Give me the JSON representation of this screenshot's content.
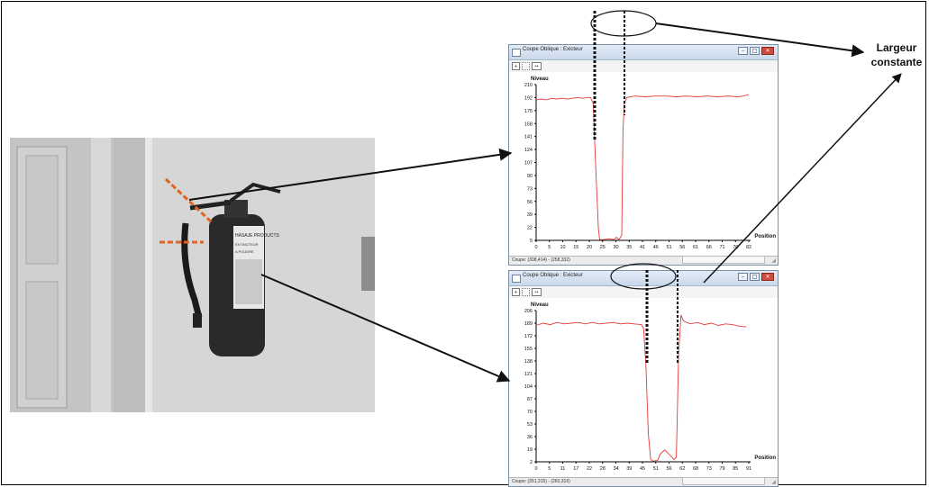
{
  "annotation": {
    "line1": "Largeur",
    "line2": "constante"
  },
  "colors": {
    "curve": "#e53b3b",
    "cut_marks": "#e0641e",
    "dashes": "#000000",
    "photo_wall": "#d2d2d2"
  },
  "photo_labels": [
    "HASAJE PRODUCTS",
    "EXTINCTEUR",
    "A POUDRE"
  ],
  "windows": [
    {
      "title": "Coupe Oblique : Exicteur",
      "status": "Coupe: (308,414) - (258,332)",
      "chart": {
        "ylabel": "Niveau",
        "xlabel": "Position",
        "yticks": [
          "210",
          "192",
          "175",
          "158",
          "141",
          "124",
          "107",
          "90",
          "73",
          "56",
          "39",
          "22",
          "5"
        ],
        "xticks": [
          "0",
          "5",
          "10",
          "15",
          "20",
          "25",
          "30",
          "35",
          "41",
          "46",
          "51",
          "56",
          "61",
          "66",
          "71",
          "76",
          "82"
        ]
      }
    },
    {
      "title": "Coupe Oblique : Exicteur",
      "status": "Coupe: (351,315) - (260,316)",
      "chart": {
        "ylabel": "Niveau",
        "xlabel": "Position",
        "yticks": [
          "206",
          "189",
          "172",
          "155",
          "138",
          "121",
          "104",
          "87",
          "70",
          "53",
          "36",
          "19",
          "2"
        ],
        "xticks": [
          "0",
          "5",
          "11",
          "17",
          "22",
          "28",
          "34",
          "39",
          "45",
          "51",
          "56",
          "62",
          "68",
          "73",
          "79",
          "85",
          "91"
        ]
      }
    }
  ],
  "chart_data": [
    {
      "type": "line",
      "xlabel": "Position",
      "ylabel": "Niveau",
      "ylim": [
        5,
        210
      ],
      "xlim": [
        0,
        82
      ],
      "series": [
        {
          "values": [
            [
              0,
              190
            ],
            [
              2,
              191
            ],
            [
              4,
              190
            ],
            [
              6,
              192
            ],
            [
              8,
              191
            ],
            [
              10,
              192
            ],
            [
              12,
              191
            ],
            [
              14,
              192
            ],
            [
              16,
              193
            ],
            [
              18,
              192
            ],
            [
              20,
              193
            ],
            [
              21,
              193
            ],
            [
              22,
              185
            ],
            [
              23,
              100
            ],
            [
              24,
              20
            ],
            [
              24.5,
              6
            ],
            [
              26,
              6
            ],
            [
              28,
              7
            ],
            [
              30,
              6
            ],
            [
              31,
              9
            ],
            [
              32,
              6
            ],
            [
              33,
              12
            ],
            [
              33.5,
              150
            ],
            [
              34,
              186
            ],
            [
              35,
              193
            ],
            [
              38,
              195
            ],
            [
              42,
              194
            ],
            [
              46,
              195
            ],
            [
              50,
              195
            ],
            [
              54,
              194
            ],
            [
              58,
              195
            ],
            [
              62,
              194
            ],
            [
              66,
              195
            ],
            [
              70,
              194
            ],
            [
              74,
              195
            ],
            [
              78,
              194
            ],
            [
              80,
              195
            ],
            [
              82,
              197
            ]
          ]
        }
      ]
    },
    {
      "type": "line",
      "xlabel": "Position",
      "ylabel": "Niveau",
      "ylim": [
        2,
        206
      ],
      "xlim": [
        0,
        91
      ],
      "series": [
        {
          "values": [
            [
              0,
              186
            ],
            [
              3,
              189
            ],
            [
              6,
              187
            ],
            [
              9,
              190
            ],
            [
              12,
              188
            ],
            [
              15,
              189
            ],
            [
              18,
              190
            ],
            [
              21,
              188
            ],
            [
              24,
              190
            ],
            [
              27,
              188
            ],
            [
              30,
              189
            ],
            [
              33,
              190
            ],
            [
              36,
              188
            ],
            [
              39,
              189
            ],
            [
              42,
              188
            ],
            [
              45,
              187
            ],
            [
              46,
              182
            ],
            [
              47,
              130
            ],
            [
              48,
              40
            ],
            [
              49,
              5
            ],
            [
              50,
              3
            ],
            [
              52,
              4
            ],
            [
              53,
              12
            ],
            [
              55,
              18
            ],
            [
              57,
              12
            ],
            [
              59,
              5
            ],
            [
              60,
              8
            ],
            [
              61,
              150
            ],
            [
              62,
              200
            ],
            [
              63,
              192
            ],
            [
              66,
              188
            ],
            [
              69,
              190
            ],
            [
              72,
              187
            ],
            [
              75,
              189
            ],
            [
              78,
              186
            ],
            [
              81,
              188
            ],
            [
              84,
              187
            ],
            [
              87,
              185
            ],
            [
              90,
              184
            ]
          ]
        }
      ]
    }
  ]
}
